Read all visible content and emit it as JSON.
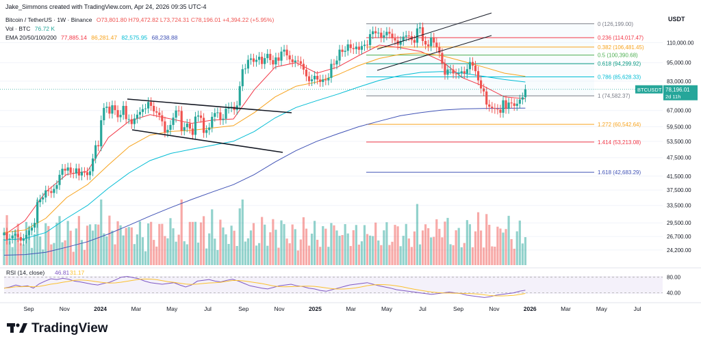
{
  "header": {
    "credit": "Jake_Simmons created with TradingView.com, Apr 24, 2026 09:35 UTC-4",
    "symbol_line": "Bitcoin / TetherUS · 1W · Binance",
    "ohlc": "O73,801.80  H79,472.82  L73,724.31  C78,196.01  +4,394.22 (+5.95%)",
    "vol_line": "Vol · BTC",
    "vol_value": "76.72 K",
    "ema_label": "EMA 20/50/100/200",
    "ema_values": [
      "77,885.14",
      "86,281.47",
      "82,575.95",
      "68,238.88"
    ]
  },
  "colors": {
    "up": "#26a69a",
    "down": "#ef5350",
    "ema20": "#f23645",
    "ema50": "#f7a21b",
    "ema100": "#00bcd4",
    "ema200": "#3f51b5",
    "rsi": "#7e57c2",
    "rsi_ma": "#fbc02d",
    "fib_gold": "#f7a21b"
  },
  "chart_data": {
    "type": "candlestick",
    "title": "Bitcoin / TetherUS · 1W · Binance",
    "currency": "USDT",
    "scale": "log",
    "ylim": [
      22000,
      140000
    ],
    "price_ticks": [
      "110,000.00",
      "95,000.00",
      "83,000.00",
      "67,000.00",
      "59,500.00",
      "53,500.00",
      "47,500.00",
      "41,500.00",
      "37,500.00",
      "33,500.00",
      "29,500.00",
      "26,700.00",
      "24,200.00"
    ],
    "time_ticks": [
      "Sep",
      "Nov",
      "2024",
      "Mar",
      "May",
      "Jul",
      "Sep",
      "Nov",
      "2025",
      "Mar",
      "May",
      "Jul",
      "Sep",
      "Nov",
      "2026",
      "Mar",
      "May",
      "Jul"
    ],
    "last_price_label": "BTCUSDT",
    "last_price": "78,196.01",
    "countdown": "2d 11h",
    "fib_levels": [
      {
        "ratio": "0",
        "value": "126,199.00",
        "price": 126199
      },
      {
        "ratio": "0.236",
        "value": "114,017.47",
        "price": 114017
      },
      {
        "ratio": "0.382",
        "value": "106,481.45",
        "price": 106481
      },
      {
        "ratio": "0.5",
        "value": "100,390.68",
        "price": 100391
      },
      {
        "ratio": "0.618",
        "value": "94,299.92",
        "price": 94300
      },
      {
        "ratio": "0.786",
        "value": "85,628.33",
        "price": 85628
      },
      {
        "ratio": "1",
        "value": "74,582.37",
        "price": 74582
      },
      {
        "ratio": "1.272",
        "value": "60,542.64",
        "price": 60543
      },
      {
        "ratio": "1.414",
        "value": "53,213.08",
        "price": 53213
      },
      {
        "ratio": "1.618",
        "value": "42,683.29",
        "price": 42683
      }
    ],
    "closes": [
      27500,
      26100,
      26300,
      26900,
      27200,
      26600,
      25900,
      26300,
      27000,
      27900,
      28500,
      29500,
      34300,
      35000,
      35500,
      37400,
      37200,
      36700,
      37800,
      38900,
      41900,
      43800,
      43200,
      44200,
      42500,
      42300,
      43900,
      41700,
      42800,
      42700,
      41800,
      43000,
      47200,
      52000,
      51600,
      62400,
      68300,
      68900,
      65500,
      69600,
      67200,
      63800,
      64900,
      69300,
      62900,
      62900,
      60700,
      63200,
      65000,
      66300,
      67700,
      68000,
      71300,
      69300,
      66600,
      66000,
      64700,
      61900,
      57100,
      58200,
      60300,
      63600,
      67000,
      66800,
      57900,
      59300,
      60900,
      58700,
      56100,
      64100,
      64600,
      63500,
      56900,
      58100,
      59200,
      64000,
      65800,
      66100,
      62500,
      63100,
      67900,
      68600,
      68900,
      67300,
      69500,
      80000,
      90600,
      91000,
      97000,
      98000,
      95600,
      97000,
      99200,
      94100,
      98200,
      101300,
      96800,
      93800,
      98700,
      96400,
      103000,
      104500,
      100200,
      97300,
      95300,
      96500,
      96000,
      94200,
      90300,
      86000,
      83000,
      84100,
      86300,
      84000,
      82500,
      84100,
      83500,
      85000,
      94200,
      93800,
      96500,
      104500,
      102800,
      103600,
      108600,
      105700,
      104900,
      106800,
      104400,
      107300,
      108300,
      108100,
      117000,
      119500,
      117800,
      118300,
      114200,
      116000,
      119000,
      117400,
      113500,
      111700,
      108300,
      111300,
      114900,
      115800,
      115300,
      112100,
      109900,
      122000,
      123000,
      111300,
      108500,
      107100,
      114200,
      110000,
      106400,
      102000,
      94300,
      87000,
      90400,
      90400,
      87800,
      87500,
      88100,
      89200,
      87800,
      90600,
      95500,
      93000,
      89300,
      83500,
      78700,
      77000,
      70000,
      68900,
      68200,
      67800,
      67500,
      65900,
      72200,
      67800,
      71000,
      70600,
      69300,
      70400,
      72600,
      73800,
      78196
    ],
    "candle_step": 4.05,
    "candle_start_x": 6,
    "series": [
      {
        "name": "EMA 20",
        "values": [
          27000,
          30000,
          37000,
          42000,
          43000,
          55000,
          62000,
          65000,
          63000,
          61000,
          62500,
          63000,
          78000,
          92000,
          95000,
          88000,
          92000,
          100000,
          108000,
          106000,
          103000,
          96000,
          85000,
          80000,
          74000,
          73000
        ]
      },
      {
        "name": "EMA 50",
        "values": [
          27500,
          28000,
          30500,
          35500,
          39000,
          45000,
          51500,
          56000,
          57500,
          58000,
          59000,
          60000,
          66000,
          74000,
          80000,
          82500,
          87000,
          93000,
          98000,
          101000,
          102000,
          100000,
          96000,
          92000,
          88000,
          86000
        ]
      },
      {
        "name": "EMA 100",
        "values": [
          26000,
          26300,
          27500,
          30500,
          33500,
          38000,
          42500,
          46500,
          49000,
          50500,
          52000,
          53500,
          57500,
          63500,
          68500,
          72000,
          75500,
          79500,
          83500,
          86500,
          88500,
          89000,
          88000,
          86000,
          84000,
          82500
        ]
      },
      {
        "name": "EMA 200",
        "values": [
          23300,
          23400,
          23800,
          24700,
          25700,
          27200,
          29000,
          31000,
          33000,
          35000,
          37000,
          39000,
          42000,
          46000,
          50000,
          53500,
          56500,
          59500,
          62000,
          64500,
          66000,
          67200,
          67800,
          68000,
          68100,
          68200
        ]
      }
    ],
    "volume_label": "Vol · BTC",
    "rsi_label": "RSI (14, close)",
    "rsi_value": "46.81",
    "rsi_ma_value": "31.17",
    "rsi_ticks": [
      "80.00",
      "40.00"
    ],
    "rsi": [
      52,
      55,
      60,
      56,
      58,
      52,
      63,
      70,
      76,
      74,
      77,
      75,
      70,
      68,
      65,
      62,
      60,
      64,
      67,
      73,
      80,
      82,
      79,
      76,
      70,
      66,
      64,
      62,
      64,
      66,
      60,
      55,
      60,
      70,
      72,
      74,
      70,
      68,
      72,
      75,
      70,
      64,
      58,
      55,
      52,
      50,
      54,
      58,
      60,
      62,
      58,
      56,
      52,
      50,
      46,
      44,
      48,
      52,
      56,
      60,
      62,
      64,
      66,
      62,
      58,
      55,
      52,
      48,
      46,
      44,
      42,
      40,
      38,
      36,
      38,
      40,
      42,
      40,
      38,
      34,
      32,
      30,
      28,
      30,
      34,
      36,
      38,
      40,
      44,
      46.81
    ]
  }
}
